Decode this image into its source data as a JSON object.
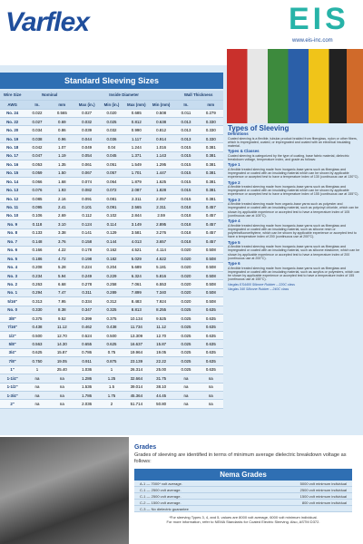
{
  "header": {
    "logo": "Varflex",
    "brand": "EIS",
    "url": "www.eis-inc.com"
  },
  "table": {
    "title": "Standard Sleeving Sizes",
    "group_headers": [
      "Wire Size",
      "Nominal",
      "Inside Diameter",
      "Wall Thickness"
    ],
    "columns": [
      "AWG",
      "In.",
      "mm",
      "Max (in.)",
      "Min (in.)",
      "Max (mm)",
      "Min (mm)",
      "In.",
      "mm"
    ],
    "rows": [
      [
        "No. 24",
        "0.022",
        "0.565",
        "0.027",
        "0.020",
        "0.685",
        "0.508",
        "0.011",
        "0.279"
      ],
      [
        "No. 22",
        "0.027",
        "0.69",
        "0.032",
        "0.025",
        "0.812",
        "0.638",
        "0.013",
        "0.330"
      ],
      [
        "No. 20",
        "0.034",
        "0.86",
        "0.039",
        "0.032",
        "0.990",
        "0.812",
        "0.013",
        "0.330"
      ],
      [
        "No. 19",
        "0.038",
        "0.96",
        "0.044",
        "0.036",
        "1.117",
        "0.914",
        "0.013",
        "0.330"
      ],
      [
        "No. 18",
        "0.042",
        "1.07",
        "0.049",
        "0.04",
        "1.244",
        "1.016",
        "0.015",
        "0.381"
      ],
      [
        "No. 17",
        "0.047",
        "1.19",
        "0.054",
        "0.045",
        "1.371",
        "1.143",
        "0.015",
        "0.381"
      ],
      [
        "No. 16",
        "0.053",
        "1.35",
        "0.061",
        "0.051",
        "1.549",
        "1.295",
        "0.015",
        "0.381"
      ],
      [
        "No. 15",
        "0.059",
        "1.50",
        "0.067",
        "0.057",
        "1.701",
        "1.447",
        "0.015",
        "0.381"
      ],
      [
        "No. 14",
        "0.066",
        "1.68",
        "0.074",
        "0.064",
        "1.879",
        "1.625",
        "0.015",
        "0.381"
      ],
      [
        "No. 13",
        "0.076",
        "1.93",
        "0.082",
        "0.072",
        "2.087",
        "1.828",
        "0.015",
        "0.381"
      ],
      [
        "No. 12",
        "0.085",
        "2.16",
        "0.091",
        "0.081",
        "2.311",
        "2.057",
        "0.015",
        "0.381"
      ],
      [
        "No. 11",
        "0.095",
        "2.41",
        "0.101",
        "0.091",
        "2.565",
        "2.311",
        "0.018",
        "0.457"
      ],
      [
        "No. 10",
        "0.106",
        "2.69",
        "0.112",
        "0.102",
        "2.844",
        "2.59",
        "0.018",
        "0.457"
      ],
      [
        "No. 9",
        "0.118",
        "3.10",
        "0.124",
        "0.114",
        "3.149",
        "2.895",
        "0.018",
        "0.457"
      ],
      [
        "No. 8",
        "0.133",
        "3.38",
        "0.141",
        "0.129",
        "3.581",
        "3.276",
        "0.018",
        "0.457"
      ],
      [
        "No. 7",
        "0.148",
        "3.76",
        "0.158",
        "0.144",
        "4.013",
        "3.657",
        "0.018",
        "0.457"
      ],
      [
        "No. 6",
        "0.166",
        "4.22",
        "0.178",
        "0.162",
        "4.521",
        "4.114",
        "0.020",
        "0.508"
      ],
      [
        "No. 5",
        "0.186",
        "4.72",
        "0.198",
        "0.182",
        "5.029",
        "4.622",
        "0.020",
        "0.508"
      ],
      [
        "No. 4",
        "0.208",
        "5.28",
        "0.224",
        "0.204",
        "5.689",
        "5.181",
        "0.020",
        "0.508"
      ],
      [
        "No. 3",
        "0.234",
        "5.94",
        "0.249",
        "0.229",
        "6.324",
        "5.816",
        "0.020",
        "0.508"
      ],
      [
        "No. 2",
        "0.263",
        "6.68",
        "0.278",
        "0.258",
        "7.061",
        "6.553",
        "0.020",
        "0.508"
      ],
      [
        "No. 1",
        "0.294",
        "7.47",
        "0.311",
        "0.289",
        "7.899",
        "7.340",
        "0.020",
        "0.508"
      ],
      [
        "5/16\"",
        "0.313",
        "7.95",
        "0.334",
        "0.312",
        "8.483",
        "7.924",
        "0.020",
        "0.508"
      ],
      [
        "No. 0",
        "0.330",
        "8.38",
        "0.347",
        "0.325",
        "8.813",
        "8.255",
        "0.025",
        "0.635"
      ],
      [
        "3/8\"",
        "0.375",
        "9.52",
        "0.399",
        "0.375",
        "10.134",
        "9.525",
        "0.025",
        "0.635"
      ],
      [
        "7/16\"",
        "0.438",
        "11.12",
        "0.462",
        "0.438",
        "11.734",
        "11.12",
        "0.025",
        "0.635"
      ],
      [
        "1/2\"",
        "0.500",
        "12.70",
        "0.524",
        "0.500",
        "13.309",
        "12.70",
        "0.025",
        "0.635"
      ],
      [
        "5/8\"",
        "0.563",
        "14.30",
        "0.655",
        "0.625",
        "16.637",
        "15.87",
        "0.025",
        "0.635"
      ],
      [
        "3/4\"",
        "0.625",
        "15.87",
        "0.786",
        "0.75",
        "19.964",
        "19.05",
        "0.025",
        "0.635"
      ],
      [
        "7/8\"",
        "0.750",
        "19.05",
        "0.911",
        "0.875",
        "23.139",
        "22.22",
        "0.025",
        "0.635"
      ],
      [
        "1\"",
        "1",
        "25.40",
        "1.036",
        "1",
        "26.314",
        "25.00",
        "0.025",
        "0.635"
      ],
      [
        "1-1/4\"",
        "na",
        "na",
        "1.286",
        "1.25",
        "32.664",
        "31.75",
        "na",
        "na"
      ],
      [
        "1-1/2\"",
        "na",
        "na",
        "1.536",
        "1.5",
        "39.014",
        "38.10",
        "na",
        "na"
      ],
      [
        "1-3/4\"",
        "na",
        "na",
        "1.786",
        "1.75",
        "45.364",
        "44.45",
        "na",
        "na"
      ],
      [
        "2\"",
        "na",
        "na",
        "2.036",
        "2",
        "51.714",
        "50.80",
        "na",
        "na"
      ]
    ]
  },
  "types": {
    "title": "Types of Sleeving",
    "definitions_heading": "Definitions",
    "definitions_text": "Coated sleeving is a flexible, tubular product braided from fiberglass, nylon or other fibers, which is impregnated, coated, or impregnated and coated with an electrical insulating material.",
    "classes_heading": "Types & Classes",
    "classes_text": "Coated sleeving is categorized by the type of coating, base fabric material, dielectric breakdown voltage, temperature index, and grade as follows:",
    "items": [
      {
        "name": "Type 1",
        "text": "A flexible treated sleeving made from inorganic-base yarns such as fiberglass and impregnated or coated with an insulating material which can be shown by applicable experience or accepted test to have a temperature index of 130 (continuous use at 130°C)."
      },
      {
        "name": "Type 2",
        "text": "A flexible treated sleeving made from inorganic-base yarns such as fiberglass and impregnated or coated with an insulating material which can be shown by applicable experience or accepted test to have a temperature index of 155 (continuous use at 155°C)."
      },
      {
        "name": "Type 3",
        "text": "A flexible treated sleeving made from organic-base yarns such as polyester and impregnated or coated with an insulating material, such as polyvinyl chloride, which can be shown by applicable experience or accepted test to have a temperature index of 105 (continuous use at 105°C)."
      },
      {
        "name": "Type 4",
        "text": "A flexible treated sleeving made from inorganic-base yarns such as fiberglass and impregnated or coated with an insulating material, such as silicone resin or polytetrafluoroethylene, which can be shown by applicable experience or accepted test to have a temperature index of 200 (continuous use at 200°C)."
      },
      {
        "name": "Type 5",
        "text": "A flexible treated sleeving made from inorganic-base yarns such as fiberglass and impregnated or coated with an insulating material, such as silicone elastomer, which can be shown by applicable experience or accepted test to have a temperature index of 200 (continuous use at 200°C)."
      },
      {
        "name": "Type 6",
        "text": "A flexible treated sleeving made from inorganic-base yarns such as fiberglass and impregnated or coated with an insulating material, such as acrylics or polyesters, which can be shown by applicable experience or accepted test to have a temperature index of 155 (continuous use at 155°C)."
      }
    ],
    "notes": [
      "Varglas ES4400 Silicone Rubber – 220C class",
      "Varglas 340 Silicone Rubber – 240C class"
    ]
  },
  "grades": {
    "title": "Grades",
    "text": "Grades of sleeving are identified in terms of minimum average dielectric breakdown voltage as follows:",
    "box_title": "Nema Grades",
    "rows": [
      [
        "A-1 — 7000* volt average.",
        "5000 volt minimum individual"
      ],
      [
        "C-1 — 2500 volt average.",
        "2500 volt minimum individual"
      ],
      [
        "C-1 — 2500 volt average.",
        "1500 volt minimum individual"
      ],
      [
        "C-2 — 1500 volt average.",
        "800 volt minimum individual"
      ],
      [
        "C-3 — No dielectric guarantee"
      ]
    ],
    "footnote": [
      "*For sleeving Types 3, 4, and 5, values are 8000 volt average, 6000 volt minimum individual.",
      "For more information, refer to NEMA Standards for Coated Electric Sleeving. Also, ASTM D372."
    ]
  }
}
